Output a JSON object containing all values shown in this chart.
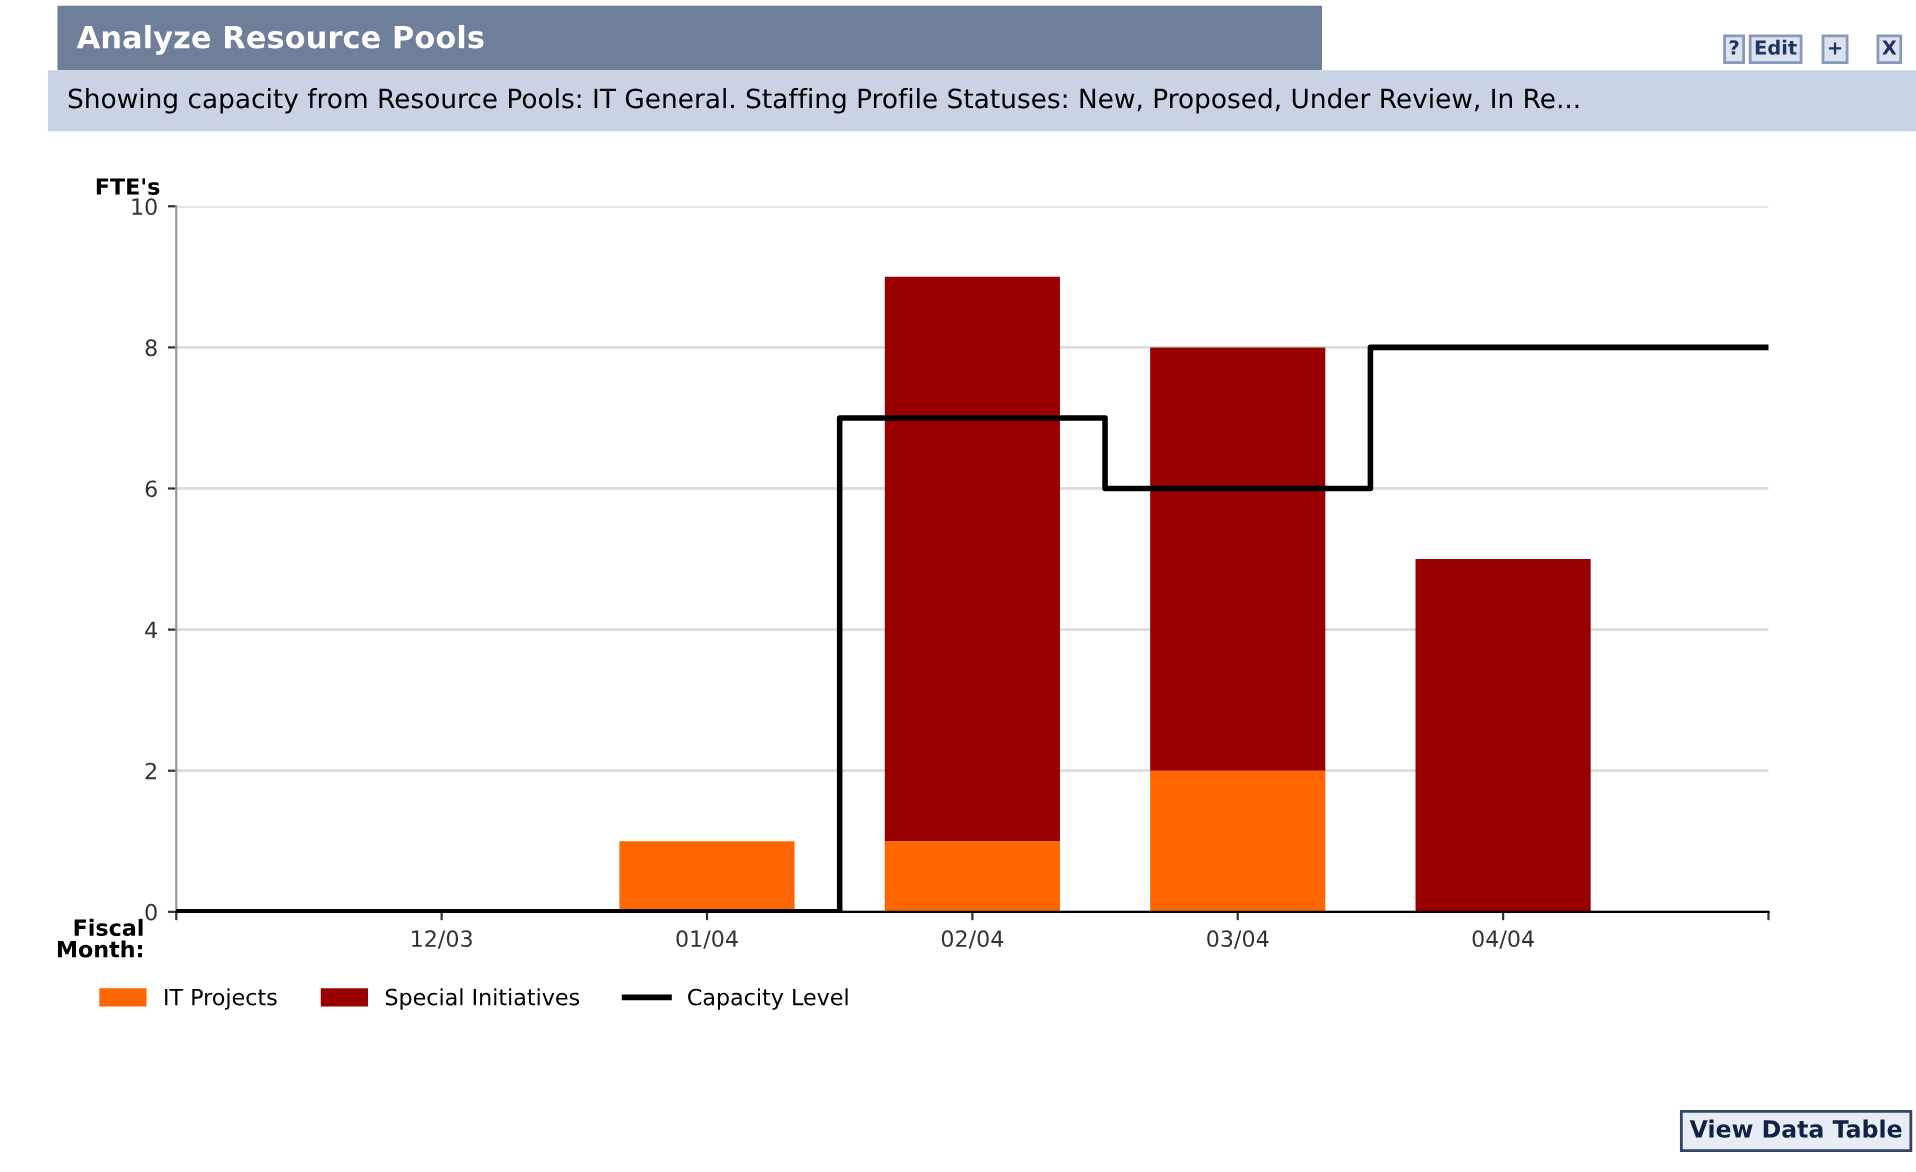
{
  "chart_data": {
    "type": "bar",
    "title": "Analyze Resource Pools",
    "subtitle": "Showing capacity from Resource Pools: IT General. Staffing Profile Statuses: New, Proposed, Under Review, In Re...",
    "ylabel": "FTE's",
    "xlabel": "Fiscal\nMonth:",
    "categories": [
      null,
      "12/03",
      "01/04",
      "02/04",
      "03/04",
      "04/04",
      null
    ],
    "stacked": true,
    "series": [
      {
        "name": "IT Projects",
        "color": "#ff6600",
        "values": [
          0,
          0,
          1,
          1,
          2,
          0,
          0
        ]
      },
      {
        "name": "Special Initiatives",
        "color": "#990000",
        "values": [
          0,
          0,
          0,
          8,
          6,
          5,
          0
        ]
      },
      {
        "name": "Capacity Level",
        "type": "step",
        "color": "#000000",
        "values": [
          0,
          0,
          0,
          7,
          6,
          8,
          8
        ]
      }
    ],
    "ylim": [
      0,
      10
    ],
    "yticks": [
      0,
      2,
      4,
      6,
      8,
      10
    ],
    "grid": "y",
    "legend": "bottom",
    "annotations": [
      "?",
      "Edit",
      "+",
      "X",
      "View Data Table"
    ]
  }
}
